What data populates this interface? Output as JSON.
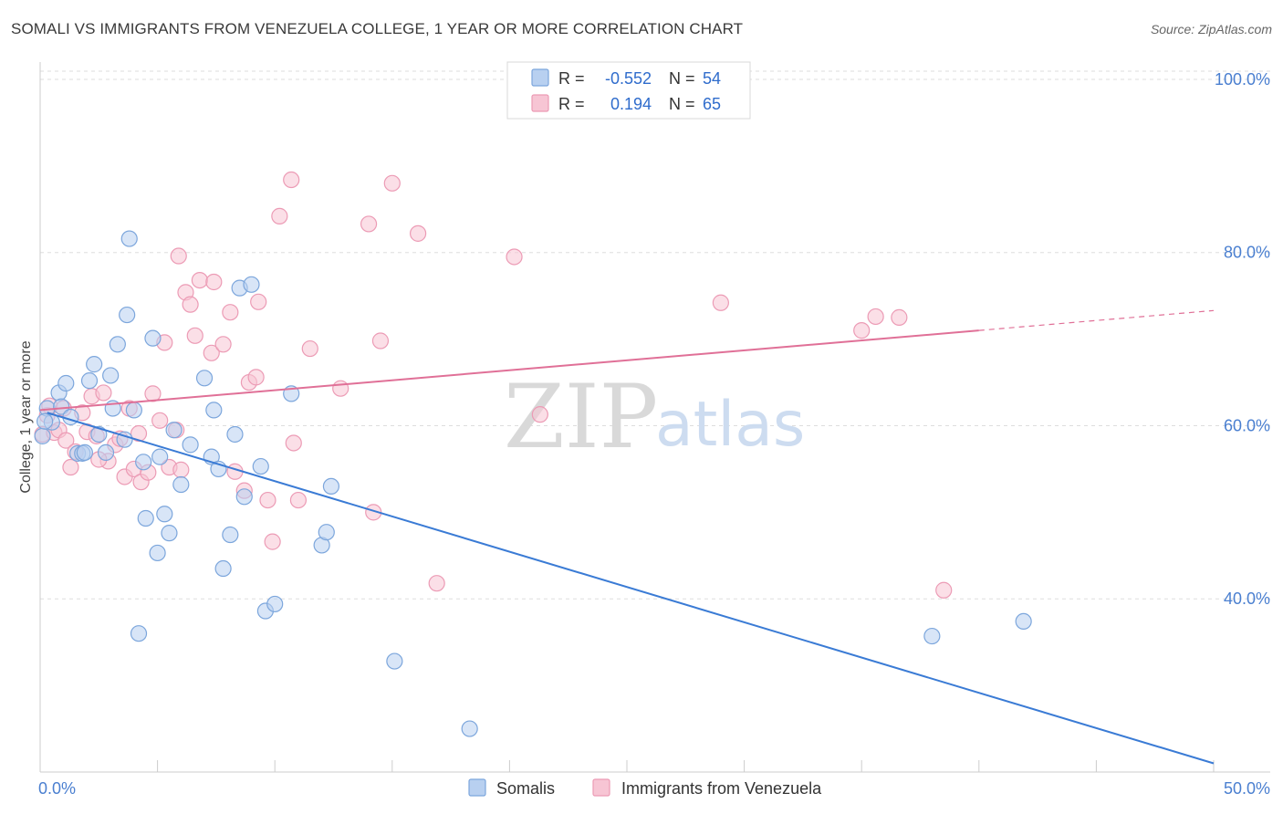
{
  "title": "SOMALI VS IMMIGRANTS FROM VENEZUELA COLLEGE, 1 YEAR OR MORE CORRELATION CHART",
  "source": "Source: ZipAtlas.com",
  "watermark": {
    "zip": "ZIP",
    "atlas": "atlas"
  },
  "legend": {
    "r_label": "R =",
    "n_label": "N =",
    "rows": [
      {
        "r": "-0.552",
        "n": "54"
      },
      {
        "r": "0.194",
        "n": "65"
      }
    ]
  },
  "bottom_legend": [
    "Somalis",
    "Immigrants from Venezuela"
  ],
  "colors": {
    "somali_fill": "#b8d0f0",
    "somali_stroke": "#7ca6dc",
    "somali_line": "#3a7bd5",
    "venezuela_fill": "#f7c5d4",
    "venezuela_stroke": "#ec9bb5",
    "venezuela_line": "#e07097",
    "tick_label": "#4a7fd0",
    "grid": "#dddddd"
  },
  "chart_data": {
    "type": "scatter",
    "title": "SOMALI VS IMMIGRANTS FROM VENEZUELA COLLEGE, 1 YEAR OR MORE CORRELATION CHART",
    "xlabel": "",
    "ylabel": "College, 1 year or more",
    "xlim": [
      0,
      50
    ],
    "ylim": [
      20,
      102
    ],
    "x_tick_labels": [
      "0.0%",
      "50.0%"
    ],
    "y_tick_values": [
      40,
      60,
      80,
      100
    ],
    "y_tick_labels": [
      "40.0%",
      "60.0%",
      "80.0%",
      "100.0%"
    ],
    "grid": true,
    "legend_position": "top-center",
    "series": [
      {
        "name": "Somalis",
        "r": -0.552,
        "n": 54,
        "trend": {
          "x": [
            0.3,
            50.0
          ],
          "y": [
            61.5,
            21.0
          ]
        },
        "points": [
          [
            0.1,
            58.8
          ],
          [
            0.3,
            62.0
          ],
          [
            0.5,
            60.4
          ],
          [
            0.8,
            63.8
          ],
          [
            0.9,
            62.2
          ],
          [
            1.1,
            64.9
          ],
          [
            1.3,
            61.0
          ],
          [
            1.6,
            56.8
          ],
          [
            1.8,
            56.8
          ],
          [
            2.1,
            65.2
          ],
          [
            2.3,
            67.1
          ],
          [
            2.5,
            59.0
          ],
          [
            2.8,
            56.9
          ],
          [
            3.0,
            65.8
          ],
          [
            3.1,
            62.0
          ],
          [
            3.3,
            69.4
          ],
          [
            3.6,
            58.4
          ],
          [
            3.7,
            72.8
          ],
          [
            3.8,
            81.6
          ],
          [
            4.0,
            61.8
          ],
          [
            4.2,
            36.0
          ],
          [
            4.4,
            55.8
          ],
          [
            4.5,
            49.3
          ],
          [
            4.8,
            70.1
          ],
          [
            5.0,
            45.3
          ],
          [
            5.1,
            56.4
          ],
          [
            5.3,
            49.8
          ],
          [
            5.5,
            47.6
          ],
          [
            5.7,
            59.5
          ],
          [
            6.0,
            53.2
          ],
          [
            6.4,
            57.8
          ],
          [
            7.0,
            65.5
          ],
          [
            7.3,
            56.4
          ],
          [
            7.4,
            61.8
          ],
          [
            7.6,
            55.0
          ],
          [
            7.8,
            43.5
          ],
          [
            8.1,
            47.4
          ],
          [
            8.3,
            59.0
          ],
          [
            8.5,
            75.9
          ],
          [
            8.7,
            51.8
          ],
          [
            9.0,
            76.3
          ],
          [
            9.4,
            55.3
          ],
          [
            9.6,
            38.6
          ],
          [
            10.0,
            39.4
          ],
          [
            10.7,
            63.7
          ],
          [
            12.0,
            46.2
          ],
          [
            12.2,
            47.7
          ],
          [
            12.4,
            53.0
          ],
          [
            15.1,
            32.8
          ],
          [
            18.3,
            25.0
          ],
          [
            38.0,
            35.7
          ],
          [
            41.9,
            37.4
          ],
          [
            0.2,
            60.5
          ],
          [
            1.9,
            56.9
          ]
        ]
      },
      {
        "name": "Immigrants from Venezuela",
        "r": 0.194,
        "n": 65,
        "trend": {
          "x": [
            0.0,
            40.0
          ],
          "y": [
            61.8,
            71.0
          ]
        },
        "trend_dashed_extension": {
          "x": [
            40.0,
            50.0
          ],
          "y": [
            71.0,
            73.3
          ]
        },
        "points": [
          [
            0.1,
            59.0
          ],
          [
            0.3,
            61.2
          ],
          [
            0.4,
            62.3
          ],
          [
            0.6,
            59.2
          ],
          [
            0.8,
            59.5
          ],
          [
            1.0,
            62.0
          ],
          [
            1.1,
            58.3
          ],
          [
            1.3,
            55.2
          ],
          [
            1.5,
            57.0
          ],
          [
            1.8,
            61.5
          ],
          [
            2.0,
            59.3
          ],
          [
            2.2,
            63.4
          ],
          [
            2.4,
            58.8
          ],
          [
            2.7,
            63.8
          ],
          [
            2.9,
            55.9
          ],
          [
            3.2,
            57.8
          ],
          [
            3.4,
            58.5
          ],
          [
            3.6,
            54.1
          ],
          [
            3.8,
            62.0
          ],
          [
            4.0,
            55.0
          ],
          [
            4.2,
            59.1
          ],
          [
            4.3,
            53.5
          ],
          [
            4.6,
            54.6
          ],
          [
            4.8,
            63.7
          ],
          [
            5.1,
            60.6
          ],
          [
            5.3,
            69.6
          ],
          [
            5.5,
            55.2
          ],
          [
            5.8,
            59.5
          ],
          [
            5.9,
            79.6
          ],
          [
            6.2,
            75.4
          ],
          [
            6.4,
            74.0
          ],
          [
            6.6,
            70.4
          ],
          [
            6.8,
            76.8
          ],
          [
            7.3,
            68.4
          ],
          [
            7.4,
            76.6
          ],
          [
            7.8,
            69.4
          ],
          [
            8.1,
            73.1
          ],
          [
            8.3,
            54.7
          ],
          [
            8.7,
            52.5
          ],
          [
            8.9,
            65.0
          ],
          [
            9.2,
            65.6
          ],
          [
            9.3,
            74.3
          ],
          [
            9.7,
            51.4
          ],
          [
            9.9,
            46.6
          ],
          [
            10.2,
            84.2
          ],
          [
            10.7,
            88.4
          ],
          [
            10.8,
            58.0
          ],
          [
            11.0,
            51.4
          ],
          [
            11.5,
            68.9
          ],
          [
            12.8,
            64.3
          ],
          [
            14.0,
            83.3
          ],
          [
            14.2,
            50.0
          ],
          [
            14.5,
            69.8
          ],
          [
            15.0,
            88.0
          ],
          [
            16.1,
            82.2
          ],
          [
            16.9,
            41.8
          ],
          [
            20.2,
            79.5
          ],
          [
            21.3,
            61.3
          ],
          [
            29.0,
            74.2
          ],
          [
            35.0,
            71.0
          ],
          [
            35.6,
            72.6
          ],
          [
            36.6,
            72.5
          ],
          [
            38.5,
            41.0
          ],
          [
            2.5,
            56.1
          ],
          [
            6.0,
            54.9
          ]
        ]
      }
    ]
  }
}
